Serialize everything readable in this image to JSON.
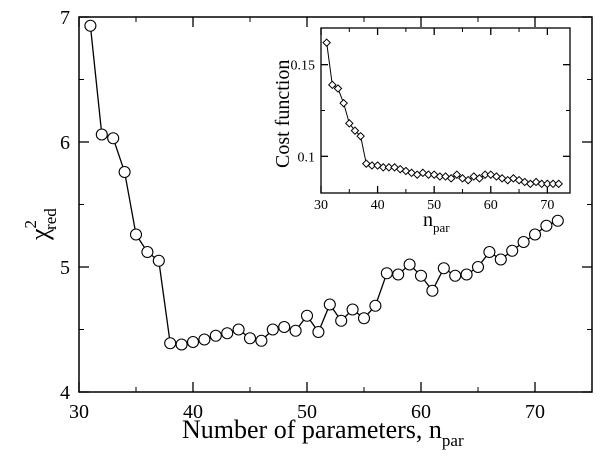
{
  "chart_data": [
    {
      "type": "line",
      "xlabel": "Number of parameters, n",
      "xlabel_subscript": "par",
      "ylabel": "χ",
      "ylabel_superscript": "2",
      "ylabel_subscript": "red",
      "xlim": [
        30,
        75
      ],
      "ylim": [
        4,
        7
      ],
      "xticks": [
        30,
        40,
        50,
        60,
        70
      ],
      "yticks": [
        4,
        5,
        6,
        7
      ],
      "grid": false,
      "marker": "circle",
      "series": [
        {
          "x": [
            31,
            32,
            33,
            34,
            35,
            36,
            37,
            38,
            39,
            40,
            41,
            42,
            43,
            44,
            45,
            46,
            47,
            48,
            49,
            50,
            51,
            52,
            53,
            54,
            55,
            56,
            57,
            58,
            59,
            60,
            61,
            62,
            63,
            64,
            65,
            66,
            67,
            68,
            69,
            70,
            71,
            72
          ],
          "y": [
            6.93,
            6.06,
            6.03,
            5.76,
            5.26,
            5.12,
            5.05,
            4.39,
            4.38,
            4.4,
            4.42,
            4.45,
            4.47,
            4.5,
            4.43,
            4.41,
            4.5,
            4.52,
            4.49,
            4.61,
            4.48,
            4.7,
            4.57,
            4.66,
            4.59,
            4.69,
            4.95,
            4.94,
            5.02,
            4.93,
            4.81,
            4.99,
            4.93,
            4.94,
            5.0,
            5.12,
            5.06,
            5.13,
            5.2,
            5.26,
            5.33,
            5.37
          ]
        }
      ]
    },
    {
      "type": "line",
      "inset": true,
      "xlabel": "n",
      "xlabel_subscript": "par",
      "ylabel": "Cost function",
      "xlim": [
        30,
        74
      ],
      "ylim": [
        0.08,
        0.17
      ],
      "xticks": [
        30,
        40,
        50,
        60,
        70
      ],
      "yticks": [
        0.1,
        0.15
      ],
      "ytick_labels": [
        "0.1",
        "0.15"
      ],
      "grid": false,
      "marker": "diamond",
      "series": [
        {
          "x": [
            31,
            32,
            33,
            34,
            35,
            36,
            37,
            38,
            39,
            40,
            41,
            42,
            43,
            44,
            45,
            46,
            47,
            48,
            49,
            50,
            51,
            52,
            53,
            54,
            55,
            56,
            57,
            58,
            59,
            60,
            61,
            62,
            63,
            64,
            65,
            66,
            67,
            68,
            69,
            70,
            71,
            72
          ],
          "y": [
            0.162,
            0.139,
            0.137,
            0.129,
            0.118,
            0.114,
            0.111,
            0.096,
            0.095,
            0.095,
            0.094,
            0.094,
            0.094,
            0.093,
            0.092,
            0.091,
            0.09,
            0.091,
            0.09,
            0.09,
            0.089,
            0.089,
            0.088,
            0.09,
            0.088,
            0.087,
            0.089,
            0.088,
            0.09,
            0.09,
            0.089,
            0.088,
            0.087,
            0.088,
            0.087,
            0.086,
            0.085,
            0.086,
            0.085,
            0.085,
            0.085,
            0.085
          ]
        }
      ]
    }
  ]
}
